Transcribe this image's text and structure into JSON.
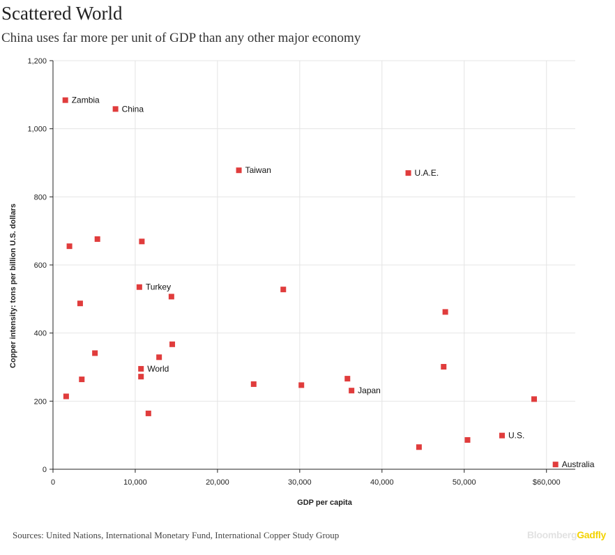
{
  "title": "Scattered World",
  "subtitle": "China uses far more per unit of GDP than any other major economy",
  "source": "Sources: United Nations, International Monetary Fund, International Copper Study Group",
  "logo": {
    "part1": "Bloomberg",
    "part2": "Gadfly"
  },
  "colors": {
    "point": "#e03c3c",
    "grid": "#e4e4e4",
    "axis": "#222222"
  },
  "chart_data": {
    "type": "scatter",
    "title": "Scattered World",
    "subtitle": "China uses far more per unit of GDP than any other major economy",
    "xlabel": "GDP per capita",
    "ylabel": "Copper intensity: tons per billion U.S. dollars",
    "xlim": [
      0,
      63500
    ],
    "ylim": [
      0,
      1200
    ],
    "grid": true,
    "x_ticks": [
      {
        "value": 0,
        "label": "0"
      },
      {
        "value": 10000,
        "label": "10,000"
      },
      {
        "value": 20000,
        "label": "20,000"
      },
      {
        "value": 30000,
        "label": "30,000"
      },
      {
        "value": 40000,
        "label": "40,000"
      },
      {
        "value": 50000,
        "label": "50,000"
      },
      {
        "value": 60000,
        "label": "$60,000"
      }
    ],
    "y_ticks": [
      {
        "value": 0,
        "label": "0"
      },
      {
        "value": 200,
        "label": "200"
      },
      {
        "value": 400,
        "label": "400"
      },
      {
        "value": 600,
        "label": "600"
      },
      {
        "value": 800,
        "label": "800"
      },
      {
        "value": 1000,
        "label": "1,000"
      },
      {
        "value": 1200,
        "label": "1,200"
      }
    ],
    "points": [
      {
        "x": 1500,
        "y": 1084,
        "label": "Zambia"
      },
      {
        "x": 7600,
        "y": 1058,
        "label": "China"
      },
      {
        "x": 22600,
        "y": 878,
        "label": "Taiwan"
      },
      {
        "x": 43200,
        "y": 870,
        "label": "U.A.E."
      },
      {
        "x": 2000,
        "y": 655,
        "label": ""
      },
      {
        "x": 5400,
        "y": 676,
        "label": ""
      },
      {
        "x": 10800,
        "y": 669,
        "label": ""
      },
      {
        "x": 10500,
        "y": 535,
        "label": "Turkey"
      },
      {
        "x": 3300,
        "y": 487,
        "label": ""
      },
      {
        "x": 14400,
        "y": 507,
        "label": ""
      },
      {
        "x": 28000,
        "y": 528,
        "label": ""
      },
      {
        "x": 47700,
        "y": 462,
        "label": ""
      },
      {
        "x": 14500,
        "y": 367,
        "label": ""
      },
      {
        "x": 5100,
        "y": 341,
        "label": ""
      },
      {
        "x": 12900,
        "y": 329,
        "label": ""
      },
      {
        "x": 10700,
        "y": 295,
        "label": "World"
      },
      {
        "x": 10700,
        "y": 272,
        "label": ""
      },
      {
        "x": 3500,
        "y": 264,
        "label": ""
      },
      {
        "x": 47500,
        "y": 301,
        "label": ""
      },
      {
        "x": 24400,
        "y": 250,
        "label": ""
      },
      {
        "x": 30200,
        "y": 247,
        "label": ""
      },
      {
        "x": 35800,
        "y": 266,
        "label": ""
      },
      {
        "x": 36300,
        "y": 231,
        "label": "Japan"
      },
      {
        "x": 1600,
        "y": 214,
        "label": ""
      },
      {
        "x": 11600,
        "y": 164,
        "label": ""
      },
      {
        "x": 58500,
        "y": 206,
        "label": ""
      },
      {
        "x": 54600,
        "y": 99,
        "label": "U.S."
      },
      {
        "x": 50400,
        "y": 86,
        "label": ""
      },
      {
        "x": 44500,
        "y": 65,
        "label": ""
      },
      {
        "x": 61100,
        "y": 14,
        "label": "Australia"
      }
    ]
  }
}
